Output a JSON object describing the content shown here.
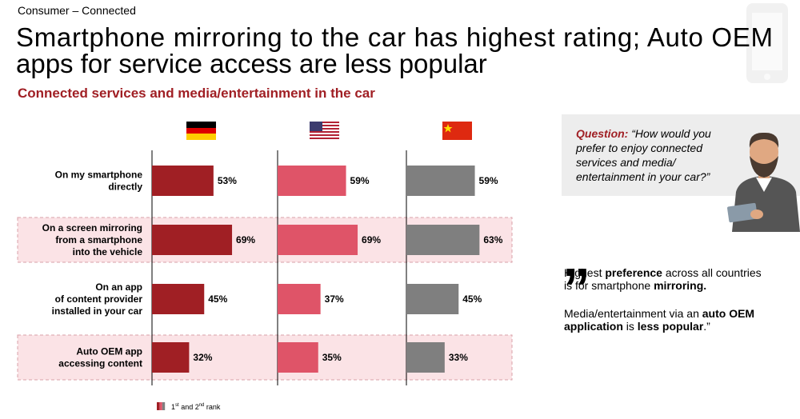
{
  "chart_data": {
    "type": "bar",
    "section": "Consumer – Connected",
    "title": [
      "Smartphone mirroring to the car has highest rating; Auto OEM",
      "apps for service access are less popular"
    ],
    "subtitle": "Connected services and media/entertainment in the car",
    "categories": [
      [
        "On my smartphone",
        "directly"
      ],
      [
        "On a screen mirroring",
        "from a smartphone",
        "into the vehicle"
      ],
      [
        "On an app",
        "of content provider",
        "installed in your car"
      ],
      [
        "Auto OEM app",
        "accessing content"
      ]
    ],
    "highlight_rows": [
      1,
      3
    ],
    "xlim": [
      0,
      100
    ],
    "series": [
      {
        "color": "#a01f24",
        "values": [
          53,
          69,
          45,
          32
        ],
        "value_labels": [
          "53%",
          "69%",
          "45%",
          "32%"
        ]
      },
      {
        "color": "#df5468",
        "values": [
          59,
          69,
          37,
          35
        ],
        "value_labels": [
          "59%",
          "69%",
          "37%",
          "35%"
        ]
      },
      {
        "color": "#7f7f7f",
        "values": [
          59,
          63,
          45,
          33
        ],
        "value_labels": [
          "59%",
          "63%",
          "45%",
          "33%"
        ]
      }
    ],
    "legend_parts": [
      "1",
      "st",
      " and 2",
      "nd",
      " rank"
    ],
    "question": {
      "label": "Question:",
      "lines": [
        "“How would you",
        "prefer  to enjoy connected",
        "services and media/",
        "entertainment in your car?”"
      ]
    },
    "quote": [
      [
        [
          {
            "text": "Highest "
          },
          {
            "text": "preference",
            "bold": true
          },
          {
            "text": " across all countries"
          }
        ],
        [
          {
            "text": "is for smartphone "
          },
          {
            "text": "mirroring.",
            "bold": true
          }
        ]
      ],
      [
        [
          {
            "text": "Media/entertainment via an "
          },
          {
            "text": "auto OEM",
            "bold": true
          }
        ],
        [
          {
            "text": "application",
            "bold": true
          },
          {
            "text": " is "
          },
          {
            "text": "less popular",
            "bold": true
          },
          {
            "text": ".”"
          }
        ]
      ]
    ]
  }
}
